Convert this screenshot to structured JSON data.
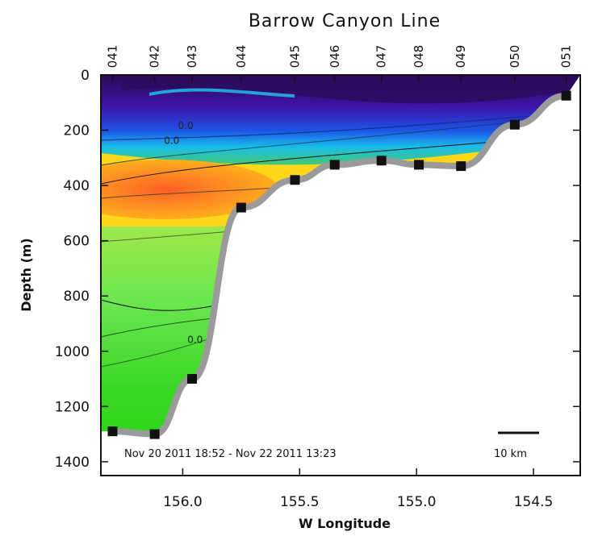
{
  "chart_data": {
    "type": "heatmap",
    "title": "Barrow Canyon Line",
    "xlabel": "W Longitude",
    "ylabel": "Depth (m)",
    "x_reversed": true,
    "y_reversed": true,
    "xlim": [
      156.35,
      154.3
    ],
    "ylim": [
      0,
      1450
    ],
    "x_ticks": [
      156.0,
      155.5,
      155.0,
      154.5
    ],
    "x_tick_labels": [
      "156.0",
      "155.5",
      "155.0",
      "154.5"
    ],
    "y_ticks": [
      0,
      200,
      400,
      600,
      800,
      1000,
      1200,
      1400
    ],
    "y_tick_labels": [
      "0",
      "200",
      "400",
      "600",
      "800",
      "1000",
      "1200",
      "1400"
    ],
    "stations": [
      {
        "name": "041",
        "lon": 156.3,
        "bottom_depth": 1290
      },
      {
        "name": "042",
        "lon": 156.12,
        "bottom_depth": 1300
      },
      {
        "name": "043",
        "lon": 155.96,
        "bottom_depth": 1100
      },
      {
        "name": "044",
        "lon": 155.75,
        "bottom_depth": 480
      },
      {
        "name": "045",
        "lon": 155.52,
        "bottom_depth": 380
      },
      {
        "name": "046",
        "lon": 155.35,
        "bottom_depth": 325
      },
      {
        "name": "047",
        "lon": 155.15,
        "bottom_depth": 310
      },
      {
        "name": "048",
        "lon": 154.99,
        "bottom_depth": 325
      },
      {
        "name": "049",
        "lon": 154.81,
        "bottom_depth": 330
      },
      {
        "name": "050",
        "lon": 154.58,
        "bottom_depth": 180
      },
      {
        "name": "051",
        "lon": 154.36,
        "bottom_depth": 75
      }
    ],
    "contour_labels": [
      {
        "text": "0.0",
        "lon": 156.08,
        "depth": 250
      },
      {
        "text": "0.0",
        "lon": 156.02,
        "depth": 195
      },
      {
        "text": "0.0",
        "lon": 155.98,
        "depth": 970
      }
    ],
    "annotation": "Nov 20 2011 18:52 - Nov 22 2011 13:23",
    "scale_bar_label": "10 km",
    "colormap": [
      "#3a0a78",
      "#3d17b8",
      "#3066e6",
      "#18c0ea",
      "#29c98b",
      "#86e25a",
      "#e7ee2b",
      "#fbc626",
      "#f99a24",
      "#f26b26"
    ],
    "colors": {
      "bathymetry": "#9a9a9a",
      "station_marker": "#111111",
      "deep_water": "#35cf10",
      "upper_water": "#ffd316"
    }
  }
}
